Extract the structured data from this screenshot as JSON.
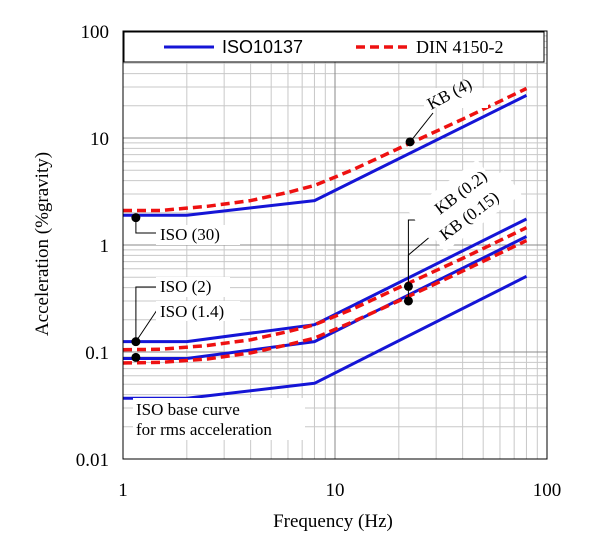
{
  "chart_data": {
    "type": "line",
    "title": "",
    "xlabel": "Frequency (Hz)",
    "ylabel": "Acceleration (%gravity)",
    "xscale": "log",
    "yscale": "log",
    "xlim": [
      1,
      100
    ],
    "ylim": [
      0.01,
      100
    ],
    "grid": true,
    "legend_position": "top",
    "x_tick_labels": [
      "1",
      "10",
      "100"
    ],
    "y_tick_labels": [
      "0.01",
      "0.1",
      "1",
      "10",
      "100"
    ],
    "series": [
      {
        "name": "ISO10137",
        "style": "solid",
        "color": "#1515d6",
        "points": [
          [
            1,
            1.9
          ],
          [
            2,
            1.9
          ],
          [
            8,
            2.6
          ],
          [
            80,
            25
          ]
        ]
      },
      {
        "name": "",
        "style": "solid",
        "color": "#1515d6",
        "points": [
          [
            1,
            0.125
          ],
          [
            2,
            0.125
          ],
          [
            8,
            0.18
          ],
          [
            80,
            1.75
          ]
        ]
      },
      {
        "name": "",
        "style": "solid",
        "color": "#1515d6",
        "points": [
          [
            1,
            0.087
          ],
          [
            2,
            0.087
          ],
          [
            8,
            0.125
          ],
          [
            80,
            1.2
          ]
        ]
      },
      {
        "name": "",
        "style": "solid",
        "color": "#1515d6",
        "points": [
          [
            1,
            0.037
          ],
          [
            2,
            0.037
          ],
          [
            8,
            0.051
          ],
          [
            80,
            0.51
          ]
        ]
      },
      {
        "name": "DIN 4150-2",
        "style": "dashed",
        "color": "#ee1111",
        "points": [
          [
            1,
            2.1
          ],
          [
            1.5,
            2.1
          ],
          [
            2.5,
            2.3
          ],
          [
            4,
            2.6
          ],
          [
            6,
            3.1
          ],
          [
            8,
            3.6
          ],
          [
            12,
            5.0
          ],
          [
            20,
            8.0
          ],
          [
            40,
            15
          ],
          [
            80,
            29
          ]
        ]
      },
      {
        "name": "",
        "style": "dashed",
        "color": "#ee1111",
        "points": [
          [
            1,
            0.105
          ],
          [
            1.5,
            0.106
          ],
          [
            2.5,
            0.115
          ],
          [
            4,
            0.13
          ],
          [
            6,
            0.155
          ],
          [
            8,
            0.18
          ],
          [
            12,
            0.25
          ],
          [
            20,
            0.4
          ],
          [
            40,
            0.75
          ],
          [
            80,
            1.45
          ]
        ]
      },
      {
        "name": "",
        "style": "dashed",
        "color": "#ee1111",
        "points": [
          [
            1,
            0.079
          ],
          [
            1.5,
            0.08
          ],
          [
            2.5,
            0.086
          ],
          [
            4,
            0.098
          ],
          [
            6,
            0.117
          ],
          [
            8,
            0.135
          ],
          [
            12,
            0.19
          ],
          [
            20,
            0.3
          ],
          [
            40,
            0.57
          ],
          [
            80,
            1.1
          ]
        ]
      }
    ],
    "markers": [
      {
        "x": 1.15,
        "y": 1.8
      },
      {
        "x": 1.15,
        "y": 0.125
      },
      {
        "x": 1.15,
        "y": 0.089
      },
      {
        "x": 22.6,
        "y": 9.2
      },
      {
        "x": 22.2,
        "y": 0.41
      },
      {
        "x": 22.2,
        "y": 0.3
      }
    ],
    "annotations": [
      {
        "text": "KB (4)",
        "rotate": -28
      },
      {
        "text": "KB (0.2)",
        "rotate": -37
      },
      {
        "text": "KB (0.15)",
        "rotate": -37
      },
      {
        "text": "ISO (30)"
      },
      {
        "text": "ISO (2)"
      },
      {
        "text": "ISO (1.4)"
      },
      {
        "text": "ISO base curve"
      },
      {
        "text": "for rms acceleration"
      }
    ]
  }
}
